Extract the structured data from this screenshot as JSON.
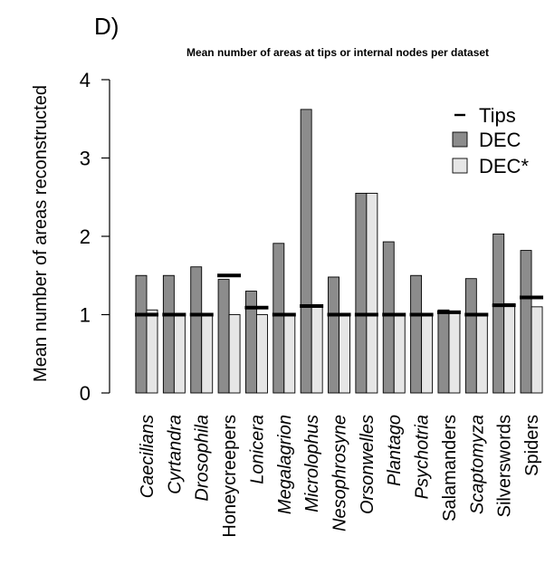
{
  "panel_label": "D)",
  "chart_data": {
    "type": "bar",
    "title": "Mean number of areas at tips or internal nodes per dataset",
    "xlabel": "",
    "ylabel": "Mean number of areas reconstructed",
    "ylim": [
      0,
      4
    ],
    "yticks": [
      0,
      1,
      2,
      3,
      4
    ],
    "categories": [
      "Caecilians",
      "Cyrtandra",
      "Drosophila",
      "Honeycreepers",
      "Lonicera",
      "Megalagrion",
      "Microlophus",
      "Nesophrosyne",
      "Orsonwelles",
      "Plantago",
      "Psychotria",
      "Salamanders",
      "Scaptomyza",
      "Silverswords",
      "Spiders"
    ],
    "italic_categories": [
      "Caecilians",
      "Cyrtandra",
      "Drosophila",
      "Lonicera",
      "Megalagrion",
      "Microlophus",
      "Nesophrosyne",
      "Orsonwelles",
      "Plantago",
      "Psychotria",
      "Scaptomyza"
    ],
    "series": [
      {
        "name": "DEC",
        "color": "#8c8c8c",
        "values": [
          1.5,
          1.5,
          1.61,
          1.45,
          1.3,
          1.91,
          3.62,
          1.48,
          2.55,
          1.93,
          1.5,
          1.06,
          1.46,
          2.03,
          1.82
        ]
      },
      {
        "name": "DEC*",
        "color": "#e6e6e6",
        "values": [
          1.06,
          1.0,
          1.0,
          1.0,
          1.0,
          1.0,
          1.12,
          1.0,
          2.55,
          1.0,
          1.0,
          1.04,
          1.0,
          1.14,
          1.1
        ]
      },
      {
        "name": "Tips",
        "color": "#000000",
        "values": [
          1.0,
          1.0,
          1.0,
          1.5,
          1.09,
          1.0,
          1.11,
          1.0,
          1.0,
          1.0,
          1.0,
          1.03,
          1.0,
          1.12,
          1.22
        ]
      }
    ],
    "legend": {
      "position": "top-right",
      "entries": [
        {
          "label": "Tips",
          "symbol": "line",
          "color": "#000000"
        },
        {
          "label": "DEC",
          "symbol": "box",
          "color": "#8c8c8c"
        },
        {
          "label": "DEC*",
          "symbol": "box",
          "color": "#e6e6e6"
        }
      ]
    }
  }
}
